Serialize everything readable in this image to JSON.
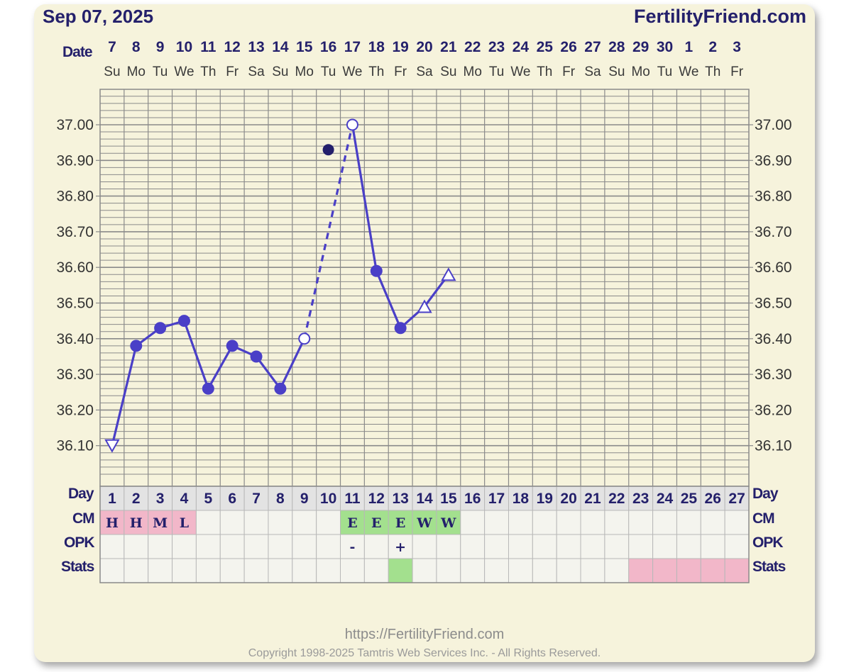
{
  "header": {
    "date_title": "Sep 07, 2025",
    "site_name": "FertilityFriend.com"
  },
  "footer": {
    "url": "https://FertilityFriend.com",
    "copyright": "Copyright 1998-2025 Tamtris Web Services Inc. - All Rights Reserved."
  },
  "row_labels": {
    "date": "Date",
    "day": "Day",
    "cm": "CM",
    "opk": "OPK",
    "stats": "Stats"
  },
  "colors": {
    "line": "#4a3fc7",
    "grid": "#8a8a8a",
    "card": "#f6f3dc",
    "cm_pink": "#f2b7c9",
    "cm_green": "#a3e08e",
    "stats_pink": "#f2b7c9",
    "stats_green": "#a3e08e",
    "empty_cell": "#f4f4ee",
    "day_row_bg": "#e3e3e3",
    "title": "#24206b",
    "outlier_dot": "#24206b"
  },
  "chart_data": {
    "type": "line",
    "ylim": [
      36.0,
      37.1
    ],
    "y_ticks": [
      "37.00",
      "36.90",
      "36.80",
      "36.70",
      "36.60",
      "36.50",
      "36.40",
      "36.30",
      "36.20",
      "36.10"
    ],
    "y_tick_values": [
      37.0,
      36.9,
      36.8,
      36.7,
      36.6,
      36.5,
      36.4,
      36.3,
      36.2,
      36.1
    ],
    "dates": [
      "7",
      "8",
      "9",
      "10",
      "11",
      "12",
      "13",
      "14",
      "15",
      "16",
      "17",
      "18",
      "19",
      "20",
      "21",
      "22",
      "23",
      "24",
      "25",
      "26",
      "27",
      "28",
      "29",
      "30",
      "1",
      "2",
      "3"
    ],
    "weekdays": [
      "Su",
      "Mo",
      "Tu",
      "We",
      "Th",
      "Fr",
      "Sa",
      "Su",
      "Mo",
      "Tu",
      "We",
      "Th",
      "Fr",
      "Sa",
      "Su",
      "Mo",
      "Tu",
      "We",
      "Th",
      "Fr",
      "Sa",
      "Su",
      "Mo",
      "Tu",
      "We",
      "Th",
      "Fr"
    ],
    "cycle_days": [
      "1",
      "2",
      "3",
      "4",
      "5",
      "6",
      "7",
      "8",
      "9",
      "10",
      "11",
      "12",
      "13",
      "14",
      "15",
      "16",
      "17",
      "18",
      "19",
      "20",
      "21",
      "22",
      "23",
      "24",
      "25",
      "26",
      "27"
    ],
    "temperatures": [
      {
        "day": 1,
        "value": 36.1,
        "marker": "triangle-down"
      },
      {
        "day": 2,
        "value": 36.38,
        "marker": "filled"
      },
      {
        "day": 3,
        "value": 36.43,
        "marker": "filled"
      },
      {
        "day": 4,
        "value": 36.45,
        "marker": "filled"
      },
      {
        "day": 5,
        "value": 36.26,
        "marker": "filled"
      },
      {
        "day": 6,
        "value": 36.38,
        "marker": "filled"
      },
      {
        "day": 7,
        "value": 36.35,
        "marker": "filled"
      },
      {
        "day": 8,
        "value": 36.26,
        "marker": "filled"
      },
      {
        "day": 9,
        "value": 36.4,
        "marker": "open"
      },
      {
        "day": 11,
        "value": 37.0,
        "marker": "open"
      },
      {
        "day": 12,
        "value": 36.59,
        "marker": "filled"
      },
      {
        "day": 13,
        "value": 36.43,
        "marker": "filled"
      },
      {
        "day": 14,
        "value": 36.49,
        "marker": "triangle-up"
      },
      {
        "day": 15,
        "value": 36.58,
        "marker": "triangle-up"
      }
    ],
    "dashed_segment": [
      9,
      11
    ],
    "discarded_points": [
      {
        "day": 10,
        "value": 36.93
      }
    ],
    "cm": [
      {
        "day": 1,
        "code": "H",
        "color": "pink"
      },
      {
        "day": 2,
        "code": "H",
        "color": "pink"
      },
      {
        "day": 3,
        "code": "M",
        "color": "pink"
      },
      {
        "day": 4,
        "code": "L",
        "color": "pink"
      },
      {
        "day": 11,
        "code": "E",
        "color": "green"
      },
      {
        "day": 12,
        "code": "E",
        "color": "green"
      },
      {
        "day": 13,
        "code": "E",
        "color": "green"
      },
      {
        "day": 14,
        "code": "W",
        "color": "green"
      },
      {
        "day": 15,
        "code": "W",
        "color": "green"
      }
    ],
    "opk": [
      {
        "day": 11,
        "code": "-"
      },
      {
        "day": 13,
        "code": "+"
      }
    ],
    "stats": [
      {
        "day": 13,
        "color": "green"
      },
      {
        "day": 23,
        "color": "pink"
      },
      {
        "day": 24,
        "color": "pink"
      },
      {
        "day": 25,
        "color": "pink"
      },
      {
        "day": 26,
        "color": "pink"
      },
      {
        "day": 27,
        "color": "pink"
      }
    ]
  }
}
